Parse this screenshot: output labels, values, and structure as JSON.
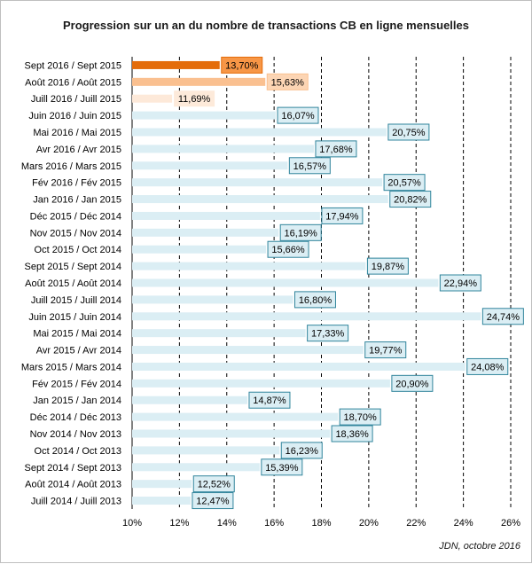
{
  "chart_data": {
    "type": "bar",
    "orientation": "horizontal",
    "title": "Progression sur un an du nombre de transactions CB en ligne mensuelles",
    "source": "JDN, octobre 2016",
    "xlim": [
      10,
      26
    ],
    "xticks": [
      "10%",
      "12%",
      "14%",
      "16%",
      "18%",
      "20%",
      "22%",
      "24%",
      "26%"
    ],
    "grid": "vertical dashed",
    "categories": [
      "Sept 2016 / Sept 2015",
      "Août 2016 / Août 2015",
      "Juill 2016 / Juill 2015",
      "Juin 2016 / Juin 2015",
      "Mai 2016 / Mai 2015",
      "Avr 2016 / Avr 2015",
      "Mars 2016 / Mars 2015",
      "Fév 2016 / Fév 2015",
      "Jan 2016 / Jan 2015",
      "Déc 2015 / Déc 2014",
      "Nov 2015 / Nov 2014",
      "Oct 2015 / Oct 2014",
      "Sept 2015 / Sept 2014",
      "Août 2015 / Août 2014",
      "Juill 2015 / Juill 2014",
      "Juin 2015 / Juin 2014",
      "Mai 2015 / Mai 2014",
      "Avr 2015 / Avr 2014",
      "Mars 2015 / Mars 2014",
      "Fév 2015 / Fév 2014",
      "Jan 2015 / Jan 2014",
      "Déc 2014 / Déc 2013",
      "Nov 2014 / Nov 2013",
      "Oct 2014 / Oct 2013",
      "Sept 2014 / Sept 2013",
      "Août 2014 / Août 2013",
      "Juill 2014 / Juill 2013"
    ],
    "values": [
      13.7,
      15.63,
      11.69,
      16.07,
      20.75,
      17.68,
      16.57,
      20.57,
      20.82,
      17.94,
      16.19,
      15.66,
      19.87,
      22.94,
      16.8,
      24.74,
      17.33,
      19.77,
      24.08,
      20.9,
      14.87,
      18.7,
      18.36,
      16.23,
      15.39,
      12.52,
      12.47
    ],
    "value_labels": [
      "13,70%",
      "15,63%",
      "11,69%",
      "16,07%",
      "20,75%",
      "17,68%",
      "16,57%",
      "20,57%",
      "20,82%",
      "17,94%",
      "16,19%",
      "15,66%",
      "19,87%",
      "22,94%",
      "16,80%",
      "24,74%",
      "17,33%",
      "19,77%",
      "24,08%",
      "20,90%",
      "14,87%",
      "18,70%",
      "18,36%",
      "16,23%",
      "15,39%",
      "12,52%",
      "12,47%"
    ],
    "colors": {
      "highlight_1": "#e46c0a",
      "highlight_1_label_bg": "#f79646",
      "highlight_1_label_border": "#e46c0a",
      "highlight_2": "#fac090",
      "highlight_2_label_bg": "#fcd5b4",
      "highlight_2_label_border": "#fac090",
      "highlight_3": "#fde9d9",
      "highlight_3_label_bg": "#fdeada",
      "default": "#dbeef4",
      "default_label_bg": "#dbeef4",
      "default_label_border": "#31859c"
    },
    "bar_color_keys": [
      "highlight_1",
      "highlight_2",
      "highlight_3",
      "default",
      "default",
      "default",
      "default",
      "default",
      "default",
      "default",
      "default",
      "default",
      "default",
      "default",
      "default",
      "default",
      "default",
      "default",
      "default",
      "default",
      "default",
      "default",
      "default",
      "default",
      "default",
      "default",
      "default"
    ]
  }
}
